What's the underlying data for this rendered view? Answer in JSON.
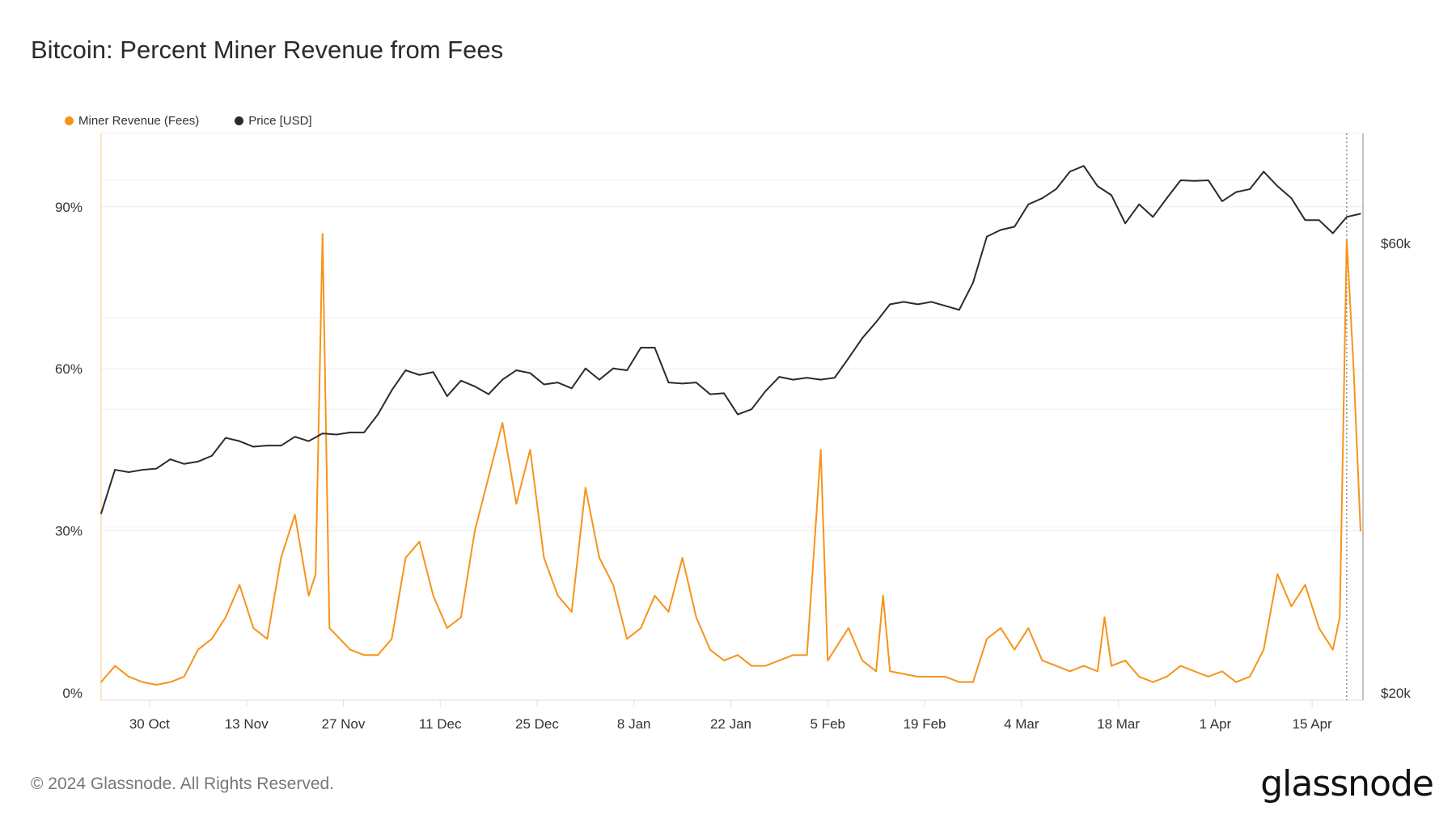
{
  "chart_data": {
    "type": "line",
    "title": "Bitcoin: Percent Miner Revenue from Fees",
    "start_date": "2023-10-23",
    "x_unit": "days since start_date",
    "xlim": [
      0,
      182
    ],
    "x_ticks": [
      {
        "day": 7,
        "label": "30 Oct"
      },
      {
        "day": 21,
        "label": "13 Nov"
      },
      {
        "day": 35,
        "label": "27 Nov"
      },
      {
        "day": 49,
        "label": "11 Dec"
      },
      {
        "day": 63,
        "label": "25 Dec"
      },
      {
        "day": 77,
        "label": "8 Jan"
      },
      {
        "day": 91,
        "label": "22 Jan"
      },
      {
        "day": 105,
        "label": "5 Feb"
      },
      {
        "day": 119,
        "label": "19 Feb"
      },
      {
        "day": 133,
        "label": "4 Mar"
      },
      {
        "day": 147,
        "label": "18 Mar"
      },
      {
        "day": 161,
        "label": "1 Apr"
      },
      {
        "day": 175,
        "label": "15 Apr"
      }
    ],
    "left_axis": {
      "ylim": [
        0,
        100
      ],
      "ticks": [
        {
          "v": 0,
          "label": "0%"
        },
        {
          "v": 30,
          "label": "30%"
        },
        {
          "v": 60,
          "label": "60%"
        },
        {
          "v": 90,
          "label": "90%"
        }
      ]
    },
    "right_axis": {
      "scale": "log",
      "ticks": [
        {
          "v": 20000,
          "label": "$20k"
        },
        {
          "v": 60000,
          "label": "$60k"
        }
      ]
    },
    "marker_day": 180,
    "legend": {
      "placement": "top-left",
      "items": [
        {
          "name": "Miner Revenue (Fees)",
          "color": "#f7931a"
        },
        {
          "name": "Price [USD]",
          "color": "#2b2b2b"
        }
      ]
    },
    "series": [
      {
        "name": "Miner Revenue (Fees)",
        "axis": "left",
        "color": "#f7931a",
        "points": [
          [
            0,
            2
          ],
          [
            2,
            5
          ],
          [
            4,
            3
          ],
          [
            6,
            2
          ],
          [
            8,
            1.5
          ],
          [
            10,
            2
          ],
          [
            12,
            3
          ],
          [
            14,
            8
          ],
          [
            16,
            10
          ],
          [
            18,
            14
          ],
          [
            20,
            20
          ],
          [
            22,
            12
          ],
          [
            24,
            10
          ],
          [
            26,
            25
          ],
          [
            28,
            33
          ],
          [
            30,
            18
          ],
          [
            31,
            22
          ],
          [
            32,
            85
          ],
          [
            33,
            12
          ],
          [
            36,
            8
          ],
          [
            38,
            7
          ],
          [
            40,
            7
          ],
          [
            42,
            10
          ],
          [
            44,
            25
          ],
          [
            46,
            28
          ],
          [
            48,
            18
          ],
          [
            50,
            12
          ],
          [
            52,
            14
          ],
          [
            54,
            30
          ],
          [
            56,
            40
          ],
          [
            58,
            50
          ],
          [
            60,
            35
          ],
          [
            62,
            45
          ],
          [
            64,
            25
          ],
          [
            66,
            18
          ],
          [
            68,
            15
          ],
          [
            70,
            38
          ],
          [
            72,
            25
          ],
          [
            74,
            20
          ],
          [
            76,
            10
          ],
          [
            78,
            12
          ],
          [
            80,
            18
          ],
          [
            82,
            15
          ],
          [
            84,
            25
          ],
          [
            86,
            14
          ],
          [
            88,
            8
          ],
          [
            90,
            6
          ],
          [
            92,
            7
          ],
          [
            94,
            5
          ],
          [
            96,
            5
          ],
          [
            98,
            6
          ],
          [
            100,
            7
          ],
          [
            102,
            7
          ],
          [
            104,
            45
          ],
          [
            105,
            6
          ],
          [
            108,
            12
          ],
          [
            110,
            6
          ],
          [
            112,
            4
          ],
          [
            113,
            18
          ],
          [
            114,
            4
          ],
          [
            118,
            3
          ],
          [
            120,
            3
          ],
          [
            122,
            3
          ],
          [
            124,
            2
          ],
          [
            126,
            2
          ],
          [
            128,
            10
          ],
          [
            130,
            12
          ],
          [
            132,
            8
          ],
          [
            134,
            12
          ],
          [
            136,
            6
          ],
          [
            138,
            5
          ],
          [
            140,
            4
          ],
          [
            142,
            5
          ],
          [
            144,
            4
          ],
          [
            145,
            14
          ],
          [
            146,
            5
          ],
          [
            148,
            6
          ],
          [
            150,
            3
          ],
          [
            152,
            2
          ],
          [
            154,
            3
          ],
          [
            156,
            5
          ],
          [
            158,
            4
          ],
          [
            160,
            3
          ],
          [
            162,
            4
          ],
          [
            164,
            2
          ],
          [
            166,
            3
          ],
          [
            168,
            8
          ],
          [
            170,
            22
          ],
          [
            172,
            16
          ],
          [
            174,
            20
          ],
          [
            176,
            12
          ],
          [
            178,
            8
          ],
          [
            179,
            14
          ],
          [
            180,
            84
          ],
          [
            181,
            60
          ],
          [
            182,
            30
          ]
        ]
      },
      {
        "name": "Price [USD]",
        "axis": "right",
        "color": "#2b2b2b",
        "step_days": 2,
        "values": [
          31000,
          34500,
          34300,
          34500,
          34600,
          35400,
          35000,
          35200,
          35700,
          37300,
          37000,
          36500,
          36600,
          36600,
          37400,
          37000,
          37700,
          37600,
          37800,
          37800,
          39500,
          41900,
          44000,
          43500,
          43800,
          41300,
          42900,
          42300,
          41500,
          43000,
          44000,
          43700,
          42500,
          42700,
          42100,
          44200,
          43000,
          44200,
          44000,
          46500,
          46500,
          42700,
          42600,
          42700,
          41500,
          41600,
          39500,
          40000,
          41800,
          43300,
          43000,
          43200,
          43000,
          43200,
          45300,
          47600,
          49500,
          51700,
          52000,
          51700,
          52000,
          51500,
          51000,
          54500,
          61000,
          62000,
          62500,
          66000,
          67000,
          68500,
          71500,
          72500,
          69000,
          67500,
          63000,
          66000,
          64000,
          67000,
          70000,
          69900,
          70000,
          66500,
          68000,
          68500,
          71500,
          69000,
          67000,
          63500,
          63500,
          61500,
          64000,
          64500
        ]
      }
    ]
  },
  "footer": {
    "copyright": "© 2024 Glassnode. All Rights Reserved.",
    "logo": "glassnode"
  }
}
